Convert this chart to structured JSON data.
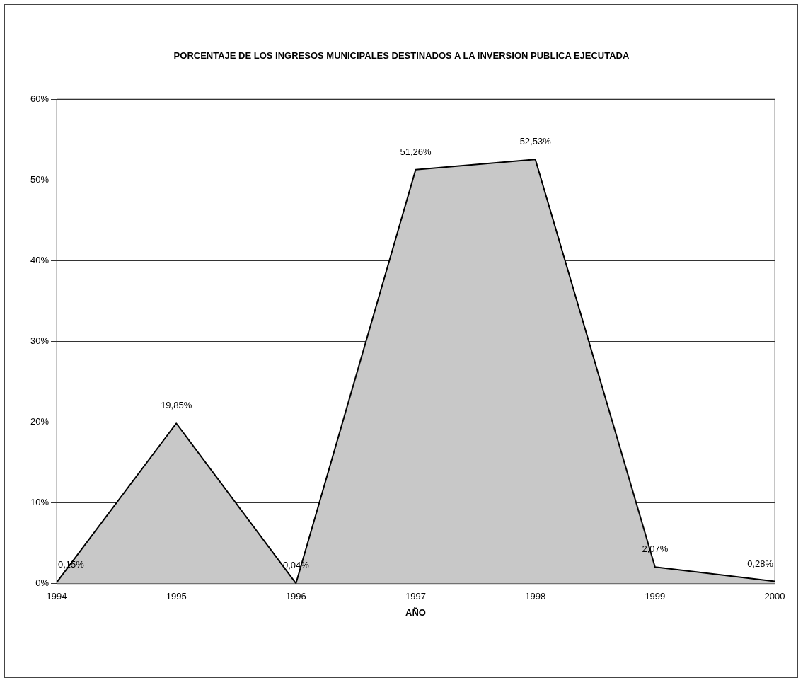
{
  "chart_data": {
    "type": "area",
    "title": "PORCENTAJE DE LOS INGRESOS MUNICIPALES DESTINADOS A LA INVERSION PUBLICA EJECUTADA",
    "xlabel": "AÑO",
    "categories": [
      "1994",
      "1995",
      "1996",
      "1997",
      "1998",
      "1999",
      "2000"
    ],
    "series": [
      {
        "color": "#c8c8c8",
        "values": [
          0.15,
          19.85,
          0.04,
          51.26,
          52.53,
          2.07,
          0.28
        ]
      }
    ],
    "value_labels": [
      "0,15%",
      "19,85%",
      "0,04%",
      "51,26%",
      "52,53%",
      "2,07%",
      "0,28%"
    ],
    "ylim": [
      0,
      60
    ],
    "yticks": [
      {
        "value": 0,
        "label": "0%"
      },
      {
        "value": 10,
        "label": "10%"
      },
      {
        "value": 20,
        "label": "20%"
      },
      {
        "value": 30,
        "label": "30%"
      },
      {
        "value": 40,
        "label": "40%"
      },
      {
        "value": 50,
        "label": "50%"
      },
      {
        "value": 60,
        "label": "60%"
      }
    ],
    "grid": "y",
    "legend": false,
    "marker": "none",
    "line_style": "solid"
  }
}
